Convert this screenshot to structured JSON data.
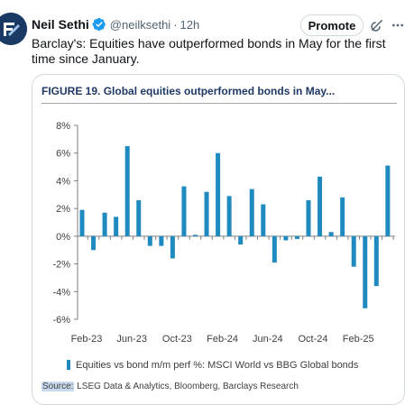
{
  "tweet": {
    "display_name": "Neil Sethi",
    "handle": "@neilksethi",
    "separator": "·",
    "time": "12h",
    "promote_label": "Promote",
    "text": "Barclay's: Equities have outperformed bonds in May for the first time since January."
  },
  "figure": {
    "number": "FIGURE 19.",
    "title": "Global equities outperformed bonds in May...",
    "source_label": "Source:",
    "source_text": " LSEG Data & Analytics, Bloomberg, Barclays Research"
  },
  "colors": {
    "bar": "#1f8ac0",
    "title": "#1f3864",
    "verified": "#1d9bf0"
  },
  "chart_data": {
    "type": "bar",
    "categories": [
      "Feb-23",
      "Mar-23",
      "Apr-23",
      "May-23",
      "Jun-23",
      "Jul-23",
      "Aug-23",
      "Sep-23",
      "Oct-23",
      "Nov-23",
      "Dec-23",
      "Jan-24",
      "Feb-24",
      "Mar-24",
      "Apr-24",
      "May-24",
      "Jun-24",
      "Jul-24",
      "Aug-24",
      "Sep-24",
      "Oct-24",
      "Nov-24",
      "Dec-24",
      "Jan-25",
      "Feb-25",
      "Mar-25",
      "Apr-25",
      "May-25"
    ],
    "series": [
      {
        "name": "Equities vs bond m/m perf %: MSCI World vs BBG Global bonds",
        "values": [
          1.9,
          -1.0,
          1.7,
          1.4,
          6.5,
          2.6,
          -0.7,
          -0.7,
          -1.6,
          3.6,
          0.1,
          3.2,
          6.0,
          2.9,
          -0.6,
          3.4,
          2.3,
          -1.9,
          -0.3,
          -0.2,
          2.6,
          4.3,
          0.3,
          2.8,
          -2.2,
          -5.2,
          -3.6,
          5.1
        ]
      }
    ],
    "x_tick_labels": [
      "Feb-23",
      "Jun-23",
      "Oct-23",
      "Feb-24",
      "Jun-24",
      "Oct-24",
      "Feb-25"
    ],
    "y_tick_labels": [
      "8%",
      "6%",
      "4%",
      "2%",
      "0%",
      "-2%",
      "-4%",
      "-6%"
    ],
    "ylim": [
      -6,
      8
    ],
    "y_ticks": [
      8,
      6,
      4,
      2,
      0,
      -2,
      -4,
      -6
    ],
    "legend_position": "bottom",
    "grid": false
  }
}
